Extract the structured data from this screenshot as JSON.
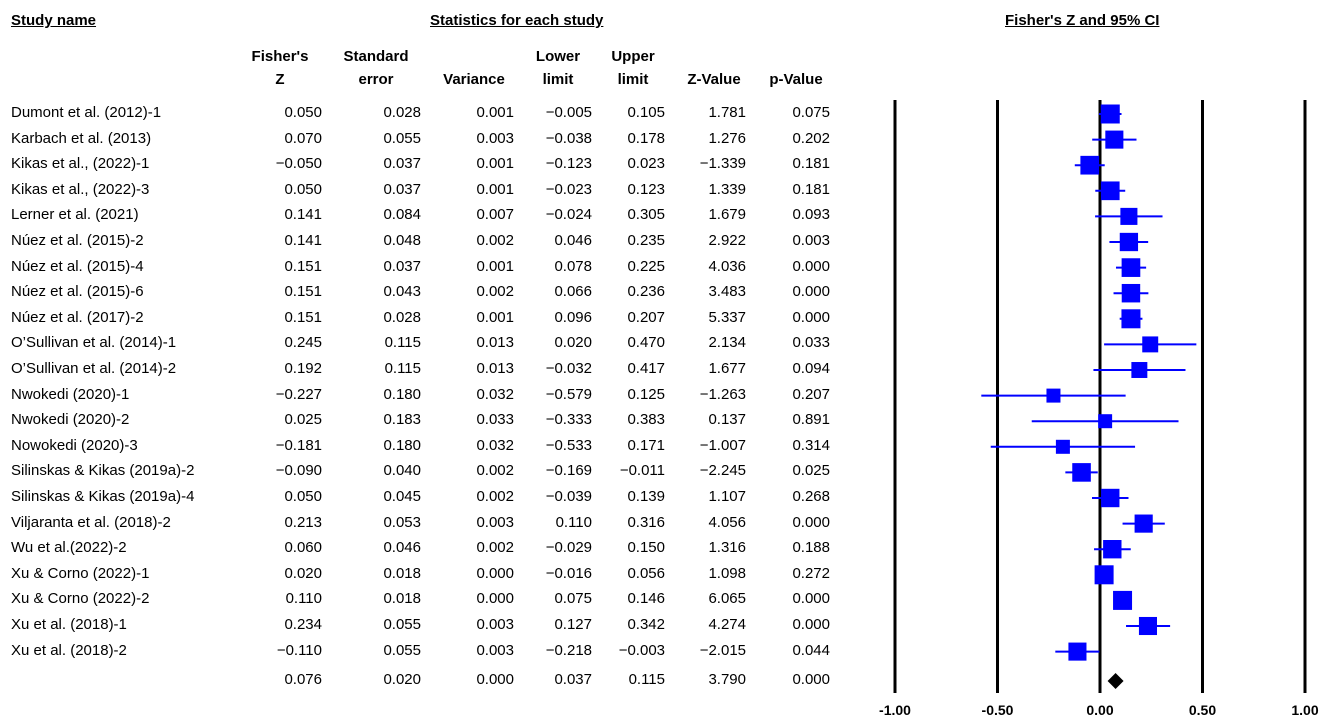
{
  "headers": {
    "study_name": "Study name",
    "statistics": "Statistics for each study",
    "plot_title": "Fisher's Z and 95% CI"
  },
  "columns": [
    {
      "key": "z",
      "label": "Fisher's\nZ"
    },
    {
      "key": "se",
      "label": "Standard\nerror"
    },
    {
      "key": "var",
      "label": "Variance"
    },
    {
      "key": "lower",
      "label": "Lower\nlimit"
    },
    {
      "key": "upper",
      "label": "Upper\nlimit"
    },
    {
      "key": "zval",
      "label": "Z-Value"
    },
    {
      "key": "p",
      "label": "p-Value"
    }
  ],
  "rows": [
    {
      "name": "Dumont et al. (2012)-1",
      "z": "0.050",
      "se": "0.028",
      "var": "0.001",
      "lower": "−0.005",
      "upper": "0.105",
      "zval": "1.781",
      "p": "0.075"
    },
    {
      "name": "Karbach et al. (2013)",
      "z": "0.070",
      "se": "0.055",
      "var": "0.003",
      "lower": "−0.038",
      "upper": "0.178",
      "zval": "1.276",
      "p": "0.202"
    },
    {
      "name": "Kikas et al., (2022)-1",
      "z": "−0.050",
      "se": "0.037",
      "var": "0.001",
      "lower": "−0.123",
      "upper": "0.023",
      "zval": "−1.339",
      "p": "0.181"
    },
    {
      "name": "Kikas et al., (2022)-3",
      "z": "0.050",
      "se": "0.037",
      "var": "0.001",
      "lower": "−0.023",
      "upper": "0.123",
      "zval": "1.339",
      "p": "0.181"
    },
    {
      "name": "Lerner et al. (2021)",
      "z": "0.141",
      "se": "0.084",
      "var": "0.007",
      "lower": "−0.024",
      "upper": "0.305",
      "zval": "1.679",
      "p": "0.093"
    },
    {
      "name": "Núez  et al. (2015)-2",
      "z": "0.141",
      "se": "0.048",
      "var": "0.002",
      "lower": "0.046",
      "upper": "0.235",
      "zval": "2.922",
      "p": "0.003"
    },
    {
      "name": "Núez  et al. (2015)-4",
      "z": "0.151",
      "se": "0.037",
      "var": "0.001",
      "lower": "0.078",
      "upper": "0.225",
      "zval": "4.036",
      "p": "0.000"
    },
    {
      "name": "Núez  et al. (2015)-6",
      "z": "0.151",
      "se": "0.043",
      "var": "0.002",
      "lower": "0.066",
      "upper": "0.236",
      "zval": "3.483",
      "p": "0.000"
    },
    {
      "name": "Núez  et al. (2017)-2",
      "z": "0.151",
      "se": "0.028",
      "var": "0.001",
      "lower": "0.096",
      "upper": "0.207",
      "zval": "5.337",
      "p": "0.000"
    },
    {
      "name": "O’Sullivan et al. (2014)-1",
      "z": "0.245",
      "se": "0.115",
      "var": "0.013",
      "lower": "0.020",
      "upper": "0.470",
      "zval": "2.134",
      "p": "0.033"
    },
    {
      "name": "O’Sullivan et al. (2014)-2",
      "z": "0.192",
      "se": "0.115",
      "var": "0.013",
      "lower": "−0.032",
      "upper": "0.417",
      "zval": "1.677",
      "p": "0.094"
    },
    {
      "name": "Nwokedi (2020)-1",
      "z": "−0.227",
      "se": "0.180",
      "var": "0.032",
      "lower": "−0.579",
      "upper": "0.125",
      "zval": "−1.263",
      "p": "0.207"
    },
    {
      "name": "Nwokedi (2020)-2",
      "z": "0.025",
      "se": "0.183",
      "var": "0.033",
      "lower": "−0.333",
      "upper": "0.383",
      "zval": "0.137",
      "p": "0.891"
    },
    {
      "name": "Nowokedi (2020)-3",
      "z": "−0.181",
      "se": "0.180",
      "var": "0.032",
      "lower": "−0.533",
      "upper": "0.171",
      "zval": "−1.007",
      "p": "0.314"
    },
    {
      "name": "Silinskas & Kikas (2019a)-2",
      "z": "−0.090",
      "se": "0.040",
      "var": "0.002",
      "lower": "−0.169",
      "upper": "−0.011",
      "zval": "−2.245",
      "p": "0.025"
    },
    {
      "name": "Silinskas & Kikas (2019a)-4",
      "z": "0.050",
      "se": "0.045",
      "var": "0.002",
      "lower": "−0.039",
      "upper": "0.139",
      "zval": "1.107",
      "p": "0.268"
    },
    {
      "name": "Viljaranta et al. (2018)-2",
      "z": "0.213",
      "se": "0.053",
      "var": "0.003",
      "lower": "0.110",
      "upper": "0.316",
      "zval": "4.056",
      "p": "0.000"
    },
    {
      "name": "Wu et al.(2022)-2",
      "z": "0.060",
      "se": "0.046",
      "var": "0.002",
      "lower": "−0.029",
      "upper": "0.150",
      "zval": "1.316",
      "p": "0.188"
    },
    {
      "name": "Xu & Corno (2022)-1",
      "z": "0.020",
      "se": "0.018",
      "var": "0.000",
      "lower": "−0.016",
      "upper": "0.056",
      "zval": "1.098",
      "p": "0.272"
    },
    {
      "name": "Xu & Corno (2022)-2",
      "z": "0.110",
      "se": "0.018",
      "var": "0.000",
      "lower": "0.075",
      "upper": "0.146",
      "zval": "6.065",
      "p": "0.000"
    },
    {
      "name": "Xu et al. (2018)-1",
      "z": "0.234",
      "se": "0.055",
      "var": "0.003",
      "lower": "0.127",
      "upper": "0.342",
      "zval": "4.274",
      "p": "0.000"
    },
    {
      "name": "Xu et al. (2018)-2",
      "z": "−0.110",
      "se": "0.055",
      "var": "0.003",
      "lower": "−0.218",
      "upper": "−0.003",
      "zval": "−2.015",
      "p": "0.044"
    }
  ],
  "summary": {
    "name": "",
    "z": "0.076",
    "se": "0.020",
    "var": "0.000",
    "lower": "0.037",
    "upper": "0.115",
    "zval": "3.790",
    "p": "0.000"
  },
  "chart_data": {
    "type": "forest",
    "title": "Fisher's Z and 95% CI",
    "xlim": [
      -1.0,
      1.0
    ],
    "xticks": [
      "-1.00",
      "-0.50",
      "0.00",
      "0.50",
      "1.00"
    ],
    "xtick_values": [
      -1.0,
      -0.5,
      0.0,
      0.5,
      1.0
    ],
    "marker_color": "#0000ff",
    "summary_color": "#000000",
    "points": [
      {
        "z": 0.05,
        "lower": -0.005,
        "upper": 0.105
      },
      {
        "z": 0.07,
        "lower": -0.038,
        "upper": 0.178
      },
      {
        "z": -0.05,
        "lower": -0.123,
        "upper": 0.023
      },
      {
        "z": 0.05,
        "lower": -0.023,
        "upper": 0.123
      },
      {
        "z": 0.141,
        "lower": -0.024,
        "upper": 0.305
      },
      {
        "z": 0.141,
        "lower": 0.046,
        "upper": 0.235
      },
      {
        "z": 0.151,
        "lower": 0.078,
        "upper": 0.225
      },
      {
        "z": 0.151,
        "lower": 0.066,
        "upper": 0.236
      },
      {
        "z": 0.151,
        "lower": 0.096,
        "upper": 0.207
      },
      {
        "z": 0.245,
        "lower": 0.02,
        "upper": 0.47
      },
      {
        "z": 0.192,
        "lower": -0.032,
        "upper": 0.417
      },
      {
        "z": -0.227,
        "lower": -0.579,
        "upper": 0.125
      },
      {
        "z": 0.025,
        "lower": -0.333,
        "upper": 0.383
      },
      {
        "z": -0.181,
        "lower": -0.533,
        "upper": 0.171
      },
      {
        "z": -0.09,
        "lower": -0.169,
        "upper": -0.011
      },
      {
        "z": 0.05,
        "lower": -0.039,
        "upper": 0.139
      },
      {
        "z": 0.213,
        "lower": 0.11,
        "upper": 0.316
      },
      {
        "z": 0.06,
        "lower": -0.029,
        "upper": 0.15
      },
      {
        "z": 0.02,
        "lower": -0.016,
        "upper": 0.056
      },
      {
        "z": 0.11,
        "lower": 0.075,
        "upper": 0.146
      },
      {
        "z": 0.234,
        "lower": 0.127,
        "upper": 0.342
      },
      {
        "z": -0.11,
        "lower": -0.218,
        "upper": -0.003
      }
    ],
    "summary_point": {
      "z": 0.076,
      "lower": 0.037,
      "upper": 0.115
    }
  }
}
